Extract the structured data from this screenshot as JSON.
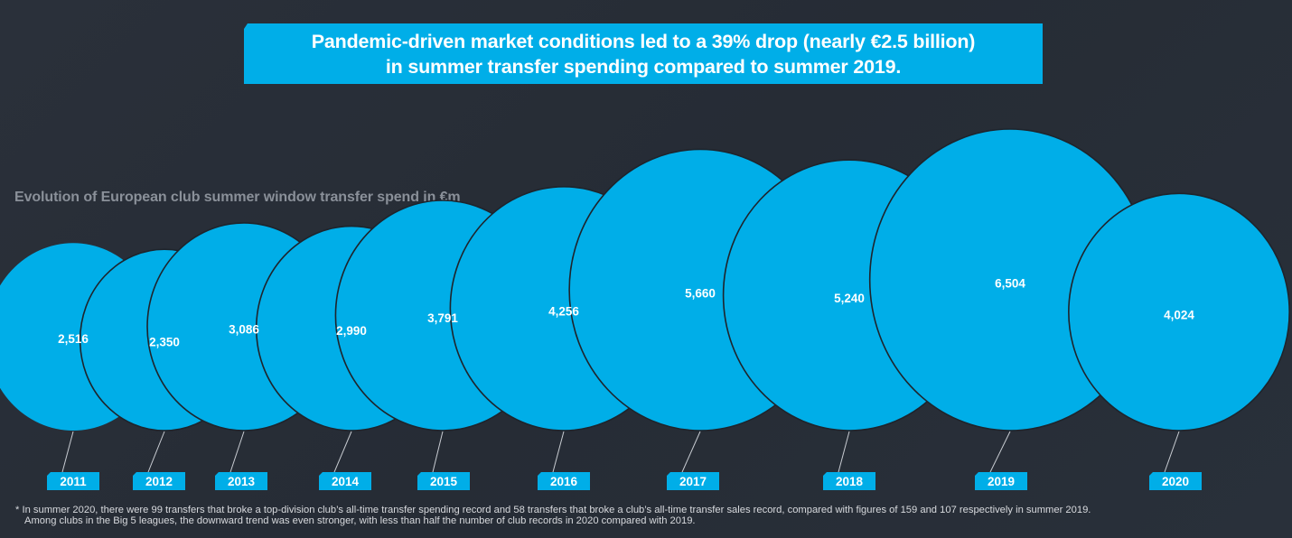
{
  "headline": {
    "line1": "Pandemic-driven market conditions led to a 39% drop (nearly €2.5 billion)",
    "line2": "in summer transfer spending compared to summer 2019."
  },
  "colors": {
    "background": "#282e38",
    "bubble": "#00aee8",
    "bubble_outline": "#1e242c",
    "label_text": "#ffffff",
    "connector": "#c8ccd2",
    "title_text": "#8a9099"
  },
  "chart_data": {
    "type": "bubble",
    "title": "Evolution of European club summer window transfer spend in €m",
    "xlabel": "",
    "ylabel": "",
    "unit": "€m",
    "categories": [
      "2011",
      "2012",
      "2013",
      "2014",
      "2015",
      "2016",
      "2017",
      "2018",
      "2019",
      "2020"
    ],
    "values": [
      2516,
      2350,
      3086,
      2990,
      3791,
      4256,
      5660,
      5240,
      6504,
      4024
    ],
    "value_labels": [
      "2,516",
      "2,350",
      "3,086",
      "2,990",
      "3,791",
      "4,256",
      "5,660",
      "5,240",
      "6,504",
      "4,024"
    ],
    "legend": "none",
    "grid": false
  },
  "footnote": {
    "line1": "* In summer 2020, there were 99 transfers that broke a top-division club’s all-time transfer spending record and 58 transfers that broke a club’s all-time transfer sales record, compared with figures of 159 and 107 respectively in summer 2019.",
    "line2": "Among clubs in the Big 5 leagues, the downward trend was even stronger, with less than half the number of club records in 2020 compared with 2019."
  }
}
